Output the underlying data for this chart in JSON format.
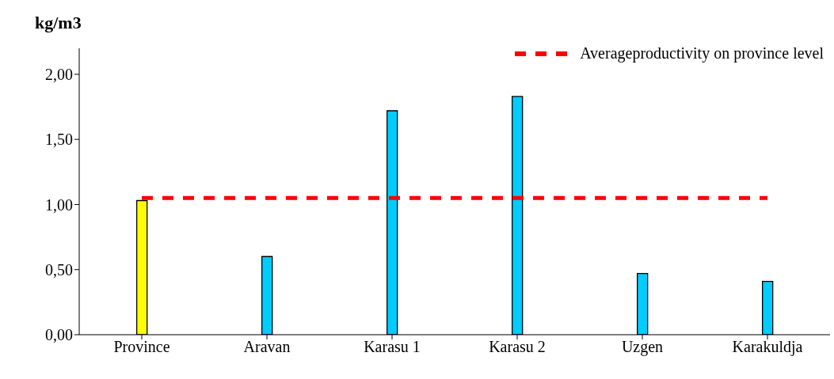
{
  "chart_data": {
    "type": "bar",
    "ylabel": "kg/m3",
    "categories": [
      "Province",
      "Aravan",
      "Karasu 1",
      "Karasu 2",
      "Uzgen",
      "Karakuldja"
    ],
    "series": [
      {
        "colors": [
          "#ffff00",
          "#00ccff",
          "#00ccff",
          "#00ccff",
          "#00ccff",
          "#00ccff"
        ],
        "values": [
          1.03,
          0.6,
          1.72,
          1.83,
          0.47,
          0.41
        ]
      },
      {
        "type": "line",
        "name": "Averageproductivity on province level",
        "color": "#ff0000",
        "line_style": "dashed",
        "marker": "none",
        "values": [
          1.05,
          1.05,
          1.05,
          1.05,
          1.05,
          1.05
        ]
      }
    ],
    "ylim": [
      0,
      2.2
    ],
    "yticks": [
      {
        "value": 0,
        "label": "0,00"
      },
      {
        "value": 0.5,
        "label": "0,50"
      },
      {
        "value": 1,
        "label": "1,00"
      },
      {
        "value": 1.5,
        "label": "1,50"
      },
      {
        "value": 2,
        "label": "2,00"
      }
    ],
    "grid": false,
    "legend": "top right"
  }
}
